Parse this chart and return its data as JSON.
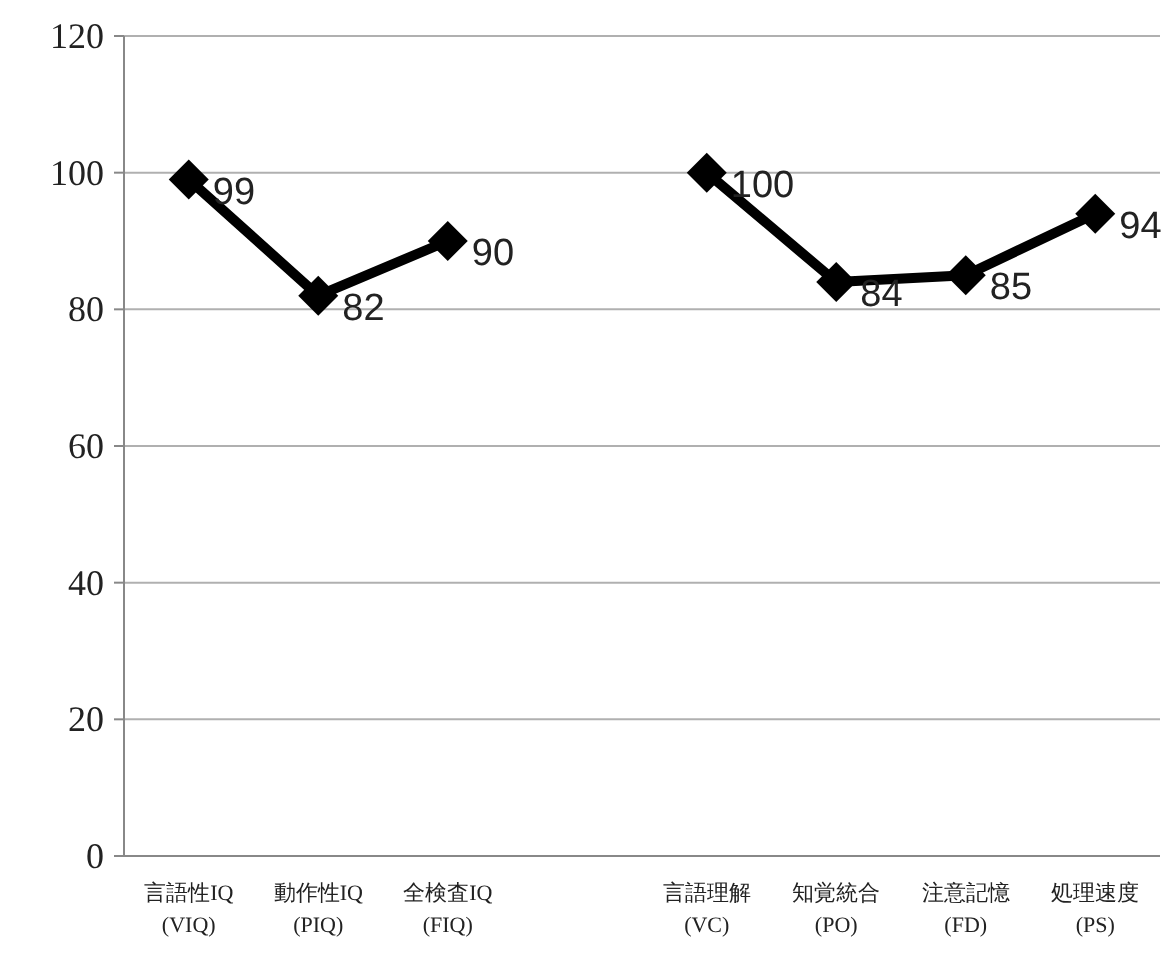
{
  "chart_data": {
    "type": "line",
    "categories": [
      "言語性IQ\n(VIQ)",
      "動作性IQ\n(PIQ)",
      "全検査IQ\n(FIQ)",
      null,
      "言語理解\n(VC)",
      "知覚統合\n(PO)",
      "注意記憶\n(FD)",
      "処理速度\n(PS)"
    ],
    "series": [
      {
        "color": "#000000",
        "values": [
          99,
          82,
          90,
          null,
          100,
          84,
          85,
          94
        ]
      }
    ],
    "ylim": [
      0,
      120
    ],
    "yticks": [
      0,
      20,
      40,
      60,
      80,
      100,
      120
    ],
    "grid": "y",
    "marker": "diamond",
    "line_style": "solid",
    "data_labels": true
  }
}
